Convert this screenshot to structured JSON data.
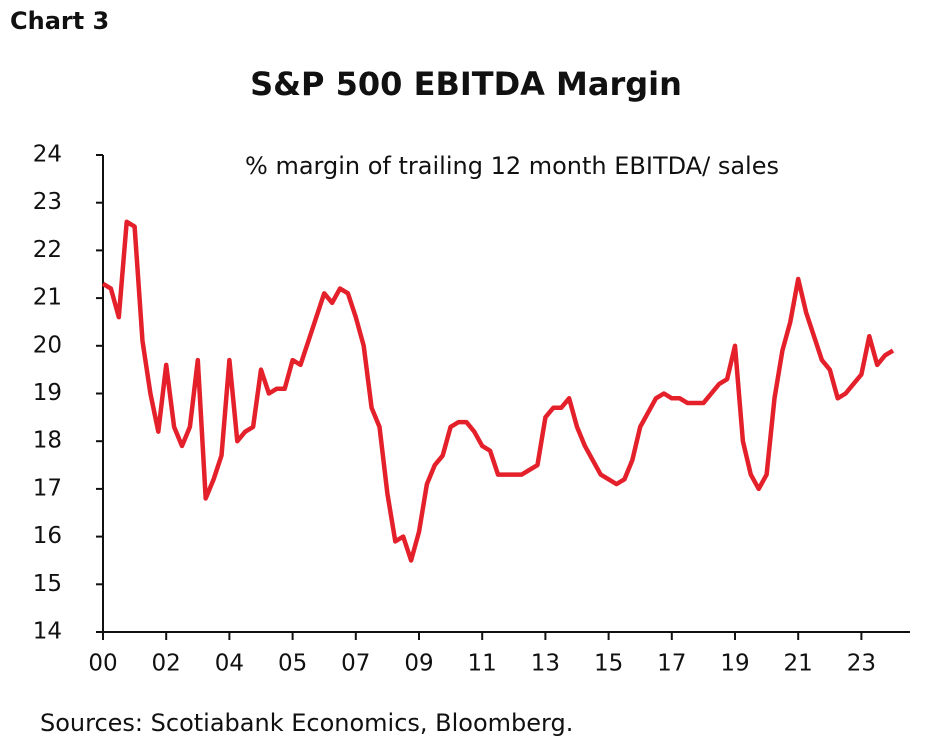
{
  "chart_data": {
    "type": "line",
    "label": "Chart 3",
    "title": "S&P 500 EBITDA Margin",
    "annotation": "% margin of trailing 12 month EBITDA/ sales",
    "source": "Sources: Scotiabank Economics, Bloomberg.",
    "categories": [
      "00",
      null,
      null,
      null,
      null,
      null,
      null,
      null,
      "02",
      null,
      null,
      null,
      null,
      null,
      null,
      null,
      "04",
      null,
      null,
      null,
      null,
      null,
      null,
      null,
      "05",
      null,
      null,
      null,
      null,
      null,
      null,
      null,
      "07",
      null,
      null,
      null,
      null,
      null,
      null,
      null,
      "09",
      null,
      null,
      null,
      null,
      null,
      null,
      null,
      "11",
      null,
      null,
      null,
      null,
      null,
      null,
      null,
      "13",
      null,
      null,
      null,
      null,
      null,
      null,
      null,
      "15",
      null,
      null,
      null,
      null,
      null,
      null,
      null,
      "17",
      null,
      null,
      null,
      null,
      null,
      null,
      null,
      "19",
      null,
      null,
      null,
      null,
      null,
      null,
      null,
      "21",
      null,
      null,
      null,
      null,
      null,
      null,
      null,
      "23",
      null,
      null,
      null,
      null
    ],
    "series": [
      {
        "color": "#e4202b",
        "values": [
          21.3,
          21.2,
          20.6,
          22.6,
          22.5,
          20.1,
          19.0,
          18.2,
          19.6,
          18.3,
          17.9,
          18.3,
          19.7,
          16.8,
          17.2,
          17.7,
          19.7,
          18.0,
          18.2,
          18.3,
          19.5,
          19.0,
          19.1,
          19.1,
          19.7,
          19.6,
          20.1,
          20.6,
          21.1,
          20.9,
          21.2,
          21.1,
          20.6,
          20.0,
          18.7,
          18.3,
          16.9,
          15.9,
          16.0,
          15.5,
          16.1,
          17.1,
          17.5,
          17.7,
          18.3,
          18.4,
          18.4,
          18.2,
          17.9,
          17.8,
          17.3,
          17.3,
          17.3,
          17.3,
          17.4,
          17.5,
          18.5,
          18.7,
          18.7,
          18.9,
          18.3,
          17.9,
          17.6,
          17.3,
          17.2,
          17.1,
          17.2,
          17.6,
          18.3,
          18.6,
          18.9,
          19.0,
          18.9,
          18.9,
          18.8,
          18.8,
          18.8,
          19.0,
          19.2,
          19.3,
          20.0,
          18.0,
          17.3,
          17.0,
          17.3,
          18.9,
          19.9,
          20.5,
          21.4,
          20.7,
          20.2,
          19.7,
          19.5,
          18.9,
          19.0,
          19.2,
          19.4,
          20.2,
          19.6,
          19.8,
          19.9
        ]
      }
    ],
    "ylim": [
      14,
      24
    ],
    "yticks": [
      14,
      15,
      16,
      17,
      18,
      19,
      20,
      21,
      22,
      23,
      24
    ]
  }
}
